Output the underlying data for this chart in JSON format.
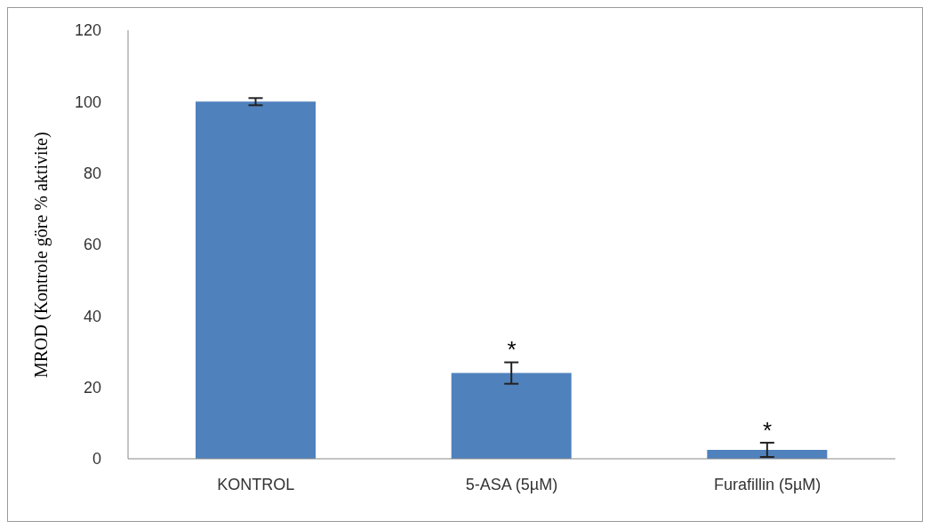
{
  "chart_data": {
    "type": "bar",
    "ylabel": "MROD (Kontrole göre % aktivite)",
    "categories": [
      "KONTROL",
      "5-ASA (5µM)",
      "Furafillin (5µM)"
    ],
    "values": [
      100,
      24,
      2.5
    ],
    "errors": [
      1,
      3,
      2
    ],
    "color": "#4f81bd",
    "ylim": [
      0,
      120
    ],
    "yticks": [
      0,
      20,
      40,
      60,
      80,
      100,
      120
    ],
    "grid": false,
    "annotations": [
      "*",
      "*"
    ]
  }
}
